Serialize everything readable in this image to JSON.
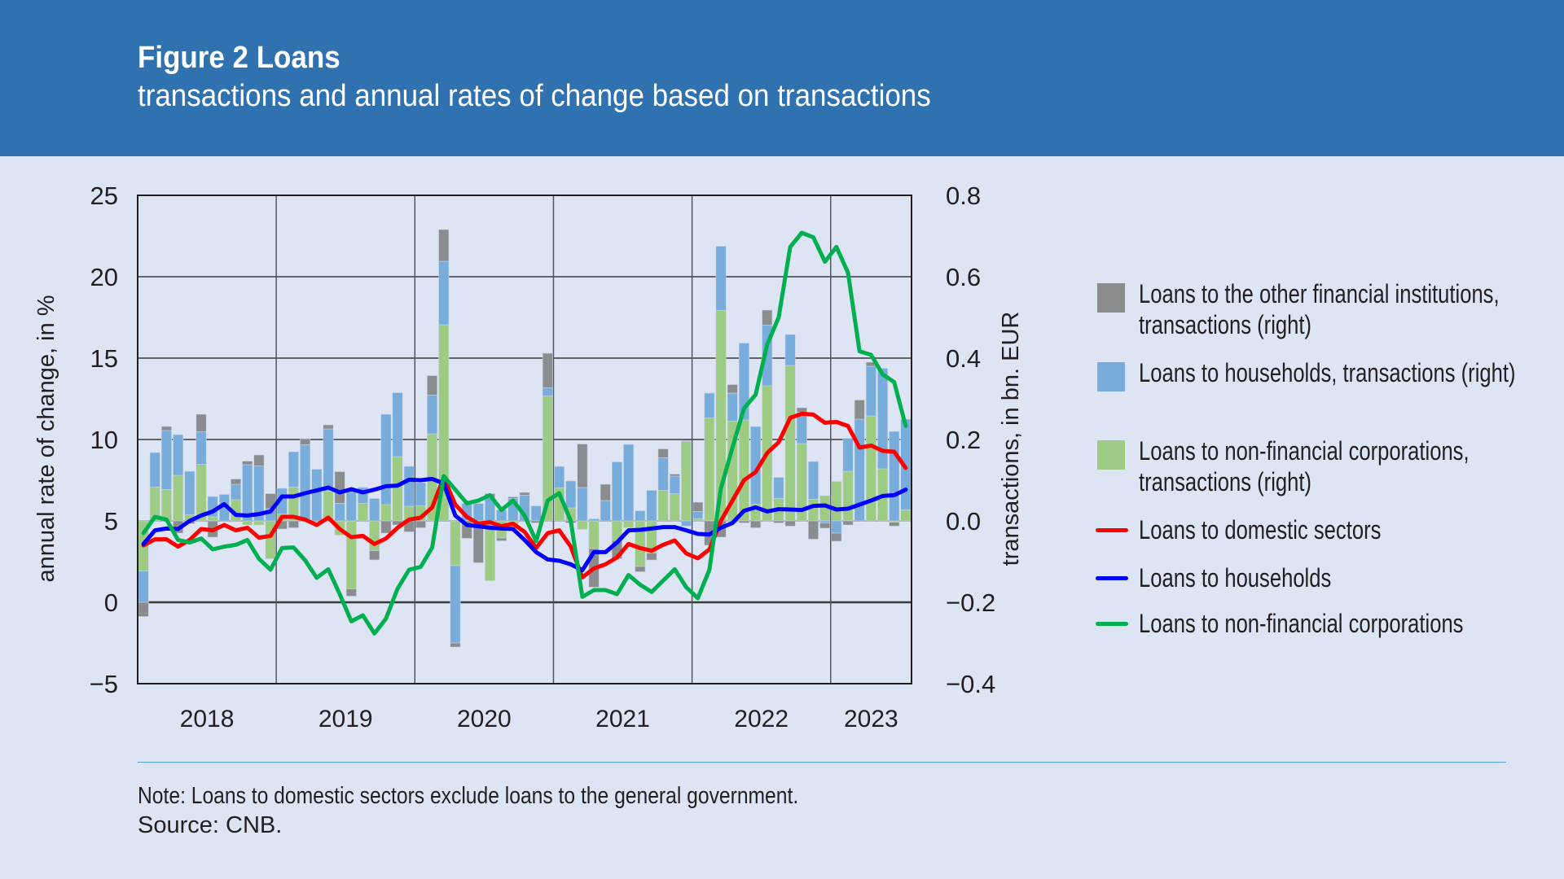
{
  "header": {
    "title": "Figure 2 Loans",
    "subtitle": "transactions and annual rates of change based on transactions"
  },
  "colors": {
    "header_bg": "#3071b0",
    "page_bg": "#dde4f3",
    "ofi_bar": "#8a8c8e",
    "households_bar": "#78acdb",
    "nfc_bar": "#9dcb84",
    "domestic_line": "#ff0000",
    "households_line": "#0000ff",
    "nfc_line": "#00b050"
  },
  "legend": [
    {
      "label": "Loans to the other financial institutions, transactions (right)",
      "kind": "bar",
      "color": "#8a8c8e"
    },
    {
      "label": "Loans to households, transactions (right)",
      "kind": "bar",
      "color": "#78acdb"
    },
    {
      "label": "Loans to non-financial corporations, transactions (right)",
      "kind": "bar",
      "color": "#9dcb84"
    },
    {
      "label": "Loans to domestic sectors",
      "kind": "line",
      "color": "#ff0000"
    },
    {
      "label": "Loans to households",
      "kind": "line",
      "color": "#0000ff"
    },
    {
      "label": "Loans to non-financial corporations",
      "kind": "line",
      "color": "#00b050"
    }
  ],
  "footer": {
    "note": "Note: Loans to domestic sectors exclude loans to the general government.",
    "source": "Source: CNB."
  },
  "chart_data": {
    "type": "bar+line",
    "title": "Figure 2 Loans",
    "subtitle": "transactions and annual rates of change based on transactions",
    "ylabel": "annual rate of change, in %",
    "y2label": "transactions, in bn. EUR",
    "ylim": [
      -5,
      25
    ],
    "y2lim": [
      -0.4,
      0.8
    ],
    "yticks": [
      "25",
      "20",
      "15",
      "10",
      "5",
      "0",
      "−5"
    ],
    "yticks_values": [
      25,
      20,
      15,
      10,
      5,
      0,
      -5
    ],
    "y2ticks": [
      "0.8",
      "0.6",
      "0.4",
      "0.2",
      "0.0",
      "−0.2",
      "−0.4"
    ],
    "y2ticks_values": [
      0.8,
      0.6,
      0.4,
      0.2,
      0.0,
      -0.2,
      -0.4
    ],
    "xticks": [
      "2018",
      "2019",
      "2020",
      "2021",
      "2022",
      "2023"
    ],
    "grid": true,
    "legend_position": "right",
    "x": [
      "2018-01",
      "2018-02",
      "2018-03",
      "2018-04",
      "2018-05",
      "2018-06",
      "2018-07",
      "2018-08",
      "2018-09",
      "2018-10",
      "2018-11",
      "2018-12",
      "2019-01",
      "2019-02",
      "2019-03",
      "2019-04",
      "2019-05",
      "2019-06",
      "2019-07",
      "2019-08",
      "2019-09",
      "2019-10",
      "2019-11",
      "2019-12",
      "2020-01",
      "2020-02",
      "2020-03",
      "2020-04",
      "2020-05",
      "2020-06",
      "2020-07",
      "2020-08",
      "2020-09",
      "2020-10",
      "2020-11",
      "2020-12",
      "2021-01",
      "2021-02",
      "2021-03",
      "2021-04",
      "2021-05",
      "2021-06",
      "2021-07",
      "2021-08",
      "2021-09",
      "2021-10",
      "2021-11",
      "2021-12",
      "2022-01",
      "2022-02",
      "2022-03",
      "2022-04",
      "2022-05",
      "2022-06",
      "2022-07",
      "2022-08",
      "2022-09",
      "2022-10",
      "2022-11",
      "2022-12",
      "2023-01",
      "2023-02",
      "2023-03",
      "2023-04",
      "2023-05",
      "2023-06",
      "2023-07"
    ],
    "bar_series": [
      {
        "name": "Loans to non-financial corporations, transactions (right)",
        "axis": "right",
        "color": "#9dcb84",
        "values": [
          -0.123,
          0.083,
          0.077,
          0.112,
          0.015,
          0.139,
          0.01,
          0,
          0.052,
          -0.01,
          -0.01,
          -0.093,
          0.017,
          0.083,
          0,
          0,
          0.073,
          -0.035,
          -0.167,
          0.043,
          -0.073,
          0.04,
          0.158,
          0.036,
          0.037,
          0.214,
          0.482,
          -0.11,
          0,
          0,
          -0.147,
          -0.042,
          -0.02,
          0,
          0,
          0.307,
          0.081,
          0.032,
          -0.021,
          -0.068,
          0,
          -0.048,
          -0.017,
          -0.112,
          -0.079,
          0.075,
          0.067,
          0.195,
          0.005,
          0.253,
          0.517,
          0.245,
          0.248,
          0.041,
          0.332,
          0.055,
          0.382,
          0.19,
          0.053,
          0.062,
          0.097,
          0.122,
          0,
          0.258,
          0.128,
          -0.003,
          0.027
        ]
      },
      {
        "name": "Loans to households, transactions (right)",
        "axis": "right",
        "color": "#78acdb",
        "values": [
          -0.077,
          0.085,
          0.145,
          0.1,
          0.107,
          0.08,
          0.05,
          0.065,
          0.038,
          0.138,
          0.135,
          0.03,
          0.063,
          0.087,
          0.187,
          0.127,
          0.153,
          0.043,
          0.072,
          0.039,
          0.055,
          0.222,
          0.157,
          0.098,
          0.057,
          0.095,
          0.156,
          -0.19,
          0.043,
          0.043,
          0.057,
          0.027,
          0.055,
          0.063,
          0.037,
          0.02,
          0.053,
          0.066,
          0.082,
          0.005,
          0.05,
          0.145,
          0.188,
          0.025,
          0.075,
          0.08,
          0.043,
          -0.013,
          0.018,
          0.061,
          0.158,
          0.069,
          0.189,
          0.191,
          0.149,
          0.052,
          0.076,
          0.077,
          0.093,
          -0.005,
          -0.03,
          0.081,
          0.25,
          0.122,
          0.247,
          0.22,
          0.223
        ]
      },
      {
        "name": "Loans to the other financial institutions, transactions (right)",
        "axis": "right",
        "color": "#8a8c8e",
        "values": [
          -0.035,
          0,
          0.01,
          -0.03,
          -0.007,
          0.043,
          -0.04,
          0,
          0.013,
          0.009,
          0.027,
          0.037,
          -0.02,
          -0.017,
          0.015,
          0,
          0.01,
          0.078,
          -0.018,
          0,
          -0.023,
          -0.03,
          -0.01,
          -0.027,
          -0.017,
          0.048,
          0.078,
          -0.01,
          -0.043,
          -0.103,
          0.01,
          -0.007,
          0.004,
          0.007,
          -0.005,
          0.085,
          0,
          -0.005,
          0.107,
          -0.095,
          0.04,
          -0.045,
          0,
          -0.013,
          -0.017,
          0.022,
          0.005,
          0.002,
          0.023,
          -0.06,
          -0.04,
          0.021,
          -0.005,
          -0.017,
          0.037,
          -0.005,
          -0.013,
          0.011,
          -0.045,
          -0.013,
          -0.02,
          -0.01,
          0.047,
          0.01,
          0,
          -0.01,
          0
        ]
      }
    ],
    "line_series": [
      {
        "name": "Loans to domestic sectors",
        "axis": "left",
        "color": "#ff0000",
        "values": [
          3.5,
          3.87,
          3.87,
          3.42,
          3.83,
          4.5,
          4.42,
          4.75,
          4.42,
          4.58,
          3.97,
          4.08,
          5.25,
          5.25,
          5.08,
          4.75,
          5.2,
          4.5,
          4.0,
          4.08,
          3.58,
          3.92,
          4.58,
          5.08,
          5.2,
          5.83,
          7.67,
          6.0,
          5.25,
          4.83,
          4.92,
          4.67,
          4.83,
          4.33,
          3.33,
          4.25,
          4.42,
          3.42,
          1.53,
          2.08,
          2.33,
          2.75,
          3.58,
          3.33,
          3.17,
          3.53,
          3.8,
          3.0,
          2.7,
          3.25,
          5.0,
          6.25,
          7.5,
          8.0,
          9.17,
          9.83,
          11.33,
          11.58,
          11.53,
          11.03,
          11.08,
          10.83,
          9.5,
          9.63,
          9.3,
          9.25,
          8.25
        ]
      },
      {
        "name": "Loans to households",
        "axis": "left",
        "color": "#0000ff",
        "values": [
          3.58,
          4.42,
          4.53,
          4.5,
          5.0,
          5.33,
          5.58,
          6.03,
          5.37,
          5.33,
          5.42,
          5.58,
          6.5,
          6.5,
          6.7,
          6.87,
          7.05,
          6.75,
          6.95,
          6.75,
          6.92,
          7.13,
          7.17,
          7.53,
          7.5,
          7.58,
          7.3,
          5.33,
          4.75,
          4.67,
          4.58,
          4.53,
          4.5,
          3.83,
          3.08,
          2.63,
          2.55,
          2.33,
          1.97,
          3.08,
          3.08,
          3.67,
          4.42,
          4.45,
          4.53,
          4.62,
          4.62,
          4.42,
          4.2,
          4.17,
          4.58,
          4.87,
          5.62,
          5.83,
          5.58,
          5.72,
          5.7,
          5.67,
          5.92,
          5.95,
          5.7,
          5.75,
          6.0,
          6.25,
          6.53,
          6.58,
          6.92
        ]
      },
      {
        "name": "Loans to non-financial corporations",
        "axis": "left",
        "color": "#00b050",
        "values": [
          4.25,
          5.25,
          5.08,
          3.83,
          3.67,
          3.92,
          3.25,
          3.42,
          3.53,
          3.83,
          2.67,
          2.0,
          3.33,
          3.37,
          2.58,
          1.5,
          2.03,
          0.5,
          -1.17,
          -0.8,
          -1.92,
          -1.0,
          0.83,
          2.0,
          2.17,
          3.37,
          7.75,
          6.92,
          6.08,
          6.25,
          6.58,
          5.67,
          6.25,
          5.33,
          3.75,
          6.25,
          6.7,
          5.0,
          0.33,
          0.75,
          0.75,
          0.5,
          1.67,
          1.08,
          0.63,
          1.33,
          2.03,
          0.92,
          0.25,
          2.0,
          7.0,
          9.5,
          11.92,
          12.75,
          15.83,
          17.5,
          21.83,
          22.7,
          22.42,
          20.92,
          21.83,
          20.25,
          15.42,
          15.2,
          14.0,
          13.53,
          10.83
        ]
      }
    ]
  }
}
